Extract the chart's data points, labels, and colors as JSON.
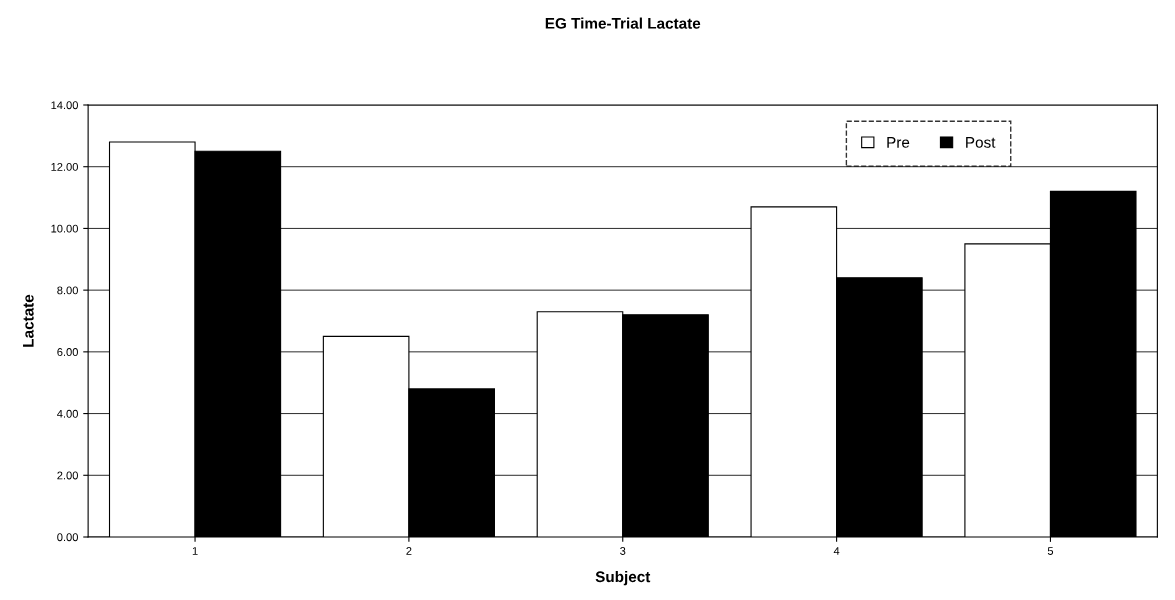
{
  "chart_data": {
    "type": "bar",
    "title": "EG Time-Trial Lactate",
    "xlabel": "Subject",
    "ylabel": "Lactate",
    "categories": [
      "1",
      "2",
      "3",
      "4",
      "5"
    ],
    "series": [
      {
        "name": "Pre",
        "color": "#ffffff",
        "values": [
          12.8,
          6.5,
          7.3,
          10.7,
          9.5
        ]
      },
      {
        "name": "Post",
        "color": "#000000",
        "values": [
          12.5,
          4.8,
          7.2,
          8.4,
          11.2
        ]
      }
    ],
    "ylim": [
      0,
      14
    ],
    "yticks": [
      {
        "value": 0,
        "label": "0.00"
      },
      {
        "value": 2,
        "label": "2.00"
      },
      {
        "value": 4,
        "label": "4.00"
      },
      {
        "value": 6,
        "label": "6.00"
      },
      {
        "value": 8,
        "label": "8.00"
      },
      {
        "value": 10,
        "label": "10.00"
      },
      {
        "value": 12,
        "label": "12.00"
      },
      {
        "value": 14,
        "label": "14.00"
      }
    ],
    "grid": "y",
    "legend": "top right"
  }
}
